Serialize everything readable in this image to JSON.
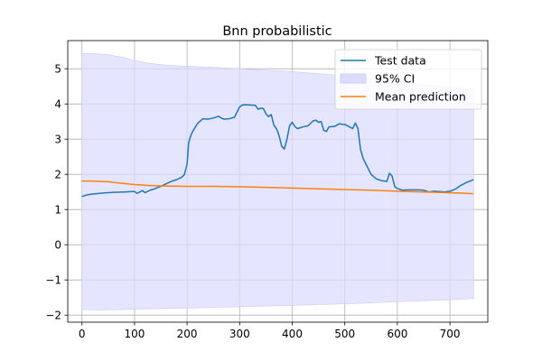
{
  "chart_data": {
    "type": "line",
    "title": "Bnn probabilistic",
    "xlabel": "",
    "ylabel": "",
    "xlim": [
      -27,
      772
    ],
    "ylim": [
      -2.2,
      5.8
    ],
    "xticks": [
      0,
      100,
      200,
      300,
      400,
      500,
      600,
      700
    ],
    "xtick_labels": [
      "0",
      "100",
      "200",
      "300",
      "400",
      "500",
      "600",
      "700"
    ],
    "yticks": [
      -2,
      -1,
      0,
      1,
      2,
      3,
      4,
      5
    ],
    "ytick_labels": [
      "−2",
      "−1",
      "0",
      "1",
      "2",
      "3",
      "4",
      "5"
    ],
    "grid": true,
    "legend_position": "top-right",
    "colors": {
      "test": "#1f77b4",
      "mean": "#ff7f0e",
      "ci_fill": "#dcdcff",
      "ci_edge": "#c8c8ff",
      "grid": "#b0b0b0"
    },
    "series": [
      {
        "name": "Test data",
        "kind": "line",
        "x": [
          0,
          10,
          20,
          40,
          60,
          80,
          95,
          100,
          105,
          110,
          115,
          120,
          130,
          140,
          150,
          160,
          170,
          180,
          190,
          195,
          200,
          203,
          207,
          210,
          220,
          230,
          240,
          250,
          260,
          265,
          270,
          280,
          290,
          300,
          305,
          310,
          320,
          330,
          335,
          340,
          345,
          350,
          355,
          360,
          365,
          370,
          375,
          380,
          385,
          390,
          395,
          400,
          405,
          410,
          420,
          430,
          440,
          445,
          450,
          455,
          460,
          465,
          470,
          480,
          490,
          495,
          500,
          505,
          510,
          515,
          520,
          525,
          530,
          535,
          540,
          550,
          560,
          570,
          580,
          585,
          590,
          595,
          600,
          610,
          620,
          640,
          650,
          660,
          670,
          680,
          690,
          700,
          710,
          720,
          730,
          745
        ],
        "values": [
          1.37,
          1.42,
          1.44,
          1.47,
          1.49,
          1.5,
          1.51,
          1.51,
          1.46,
          1.5,
          1.54,
          1.48,
          1.55,
          1.6,
          1.66,
          1.73,
          1.8,
          1.85,
          1.92,
          2.0,
          2.3,
          2.9,
          3.1,
          3.2,
          3.45,
          3.58,
          3.57,
          3.6,
          3.65,
          3.6,
          3.57,
          3.58,
          3.62,
          3.92,
          3.97,
          3.98,
          3.97,
          3.96,
          3.85,
          3.88,
          3.87,
          3.72,
          3.64,
          3.7,
          3.4,
          3.3,
          3.1,
          2.8,
          2.72,
          3.0,
          3.38,
          3.48,
          3.36,
          3.3,
          3.35,
          3.38,
          3.52,
          3.54,
          3.48,
          3.5,
          3.25,
          3.22,
          3.35,
          3.36,
          3.44,
          3.42,
          3.42,
          3.38,
          3.34,
          3.3,
          3.46,
          3.3,
          2.7,
          2.45,
          2.3,
          2.0,
          1.87,
          1.82,
          1.8,
          2.03,
          1.95,
          1.65,
          1.6,
          1.55,
          1.56,
          1.56,
          1.55,
          1.5,
          1.52,
          1.51,
          1.5,
          1.52,
          1.58,
          1.68,
          1.76,
          1.85
        ]
      },
      {
        "name": "95% CI",
        "kind": "band",
        "x": [
          0,
          20,
          50,
          80,
          100,
          130,
          160,
          200,
          250,
          300,
          350,
          400,
          450,
          500,
          550,
          600,
          650,
          700,
          745
        ],
        "upper": [
          5.44,
          5.43,
          5.4,
          5.32,
          5.23,
          5.15,
          5.1,
          5.07,
          5.04,
          5.0,
          4.96,
          4.92,
          4.86,
          4.8,
          4.72,
          4.63,
          4.55,
          4.48,
          4.41
        ],
        "lower": [
          -1.84,
          -1.85,
          -1.85,
          -1.84,
          -1.83,
          -1.82,
          -1.81,
          -1.8,
          -1.78,
          -1.76,
          -1.74,
          -1.72,
          -1.7,
          -1.68,
          -1.65,
          -1.62,
          -1.59,
          -1.56,
          -1.53
        ]
      },
      {
        "name": "Mean prediction",
        "kind": "line",
        "x": [
          0,
          20,
          50,
          80,
          100,
          130,
          160,
          200,
          250,
          300,
          350,
          400,
          450,
          500,
          550,
          600,
          650,
          700,
          745
        ],
        "values": [
          1.81,
          1.81,
          1.79,
          1.74,
          1.71,
          1.68,
          1.67,
          1.66,
          1.66,
          1.65,
          1.63,
          1.61,
          1.59,
          1.57,
          1.55,
          1.52,
          1.5,
          1.48,
          1.45
        ]
      }
    ]
  }
}
